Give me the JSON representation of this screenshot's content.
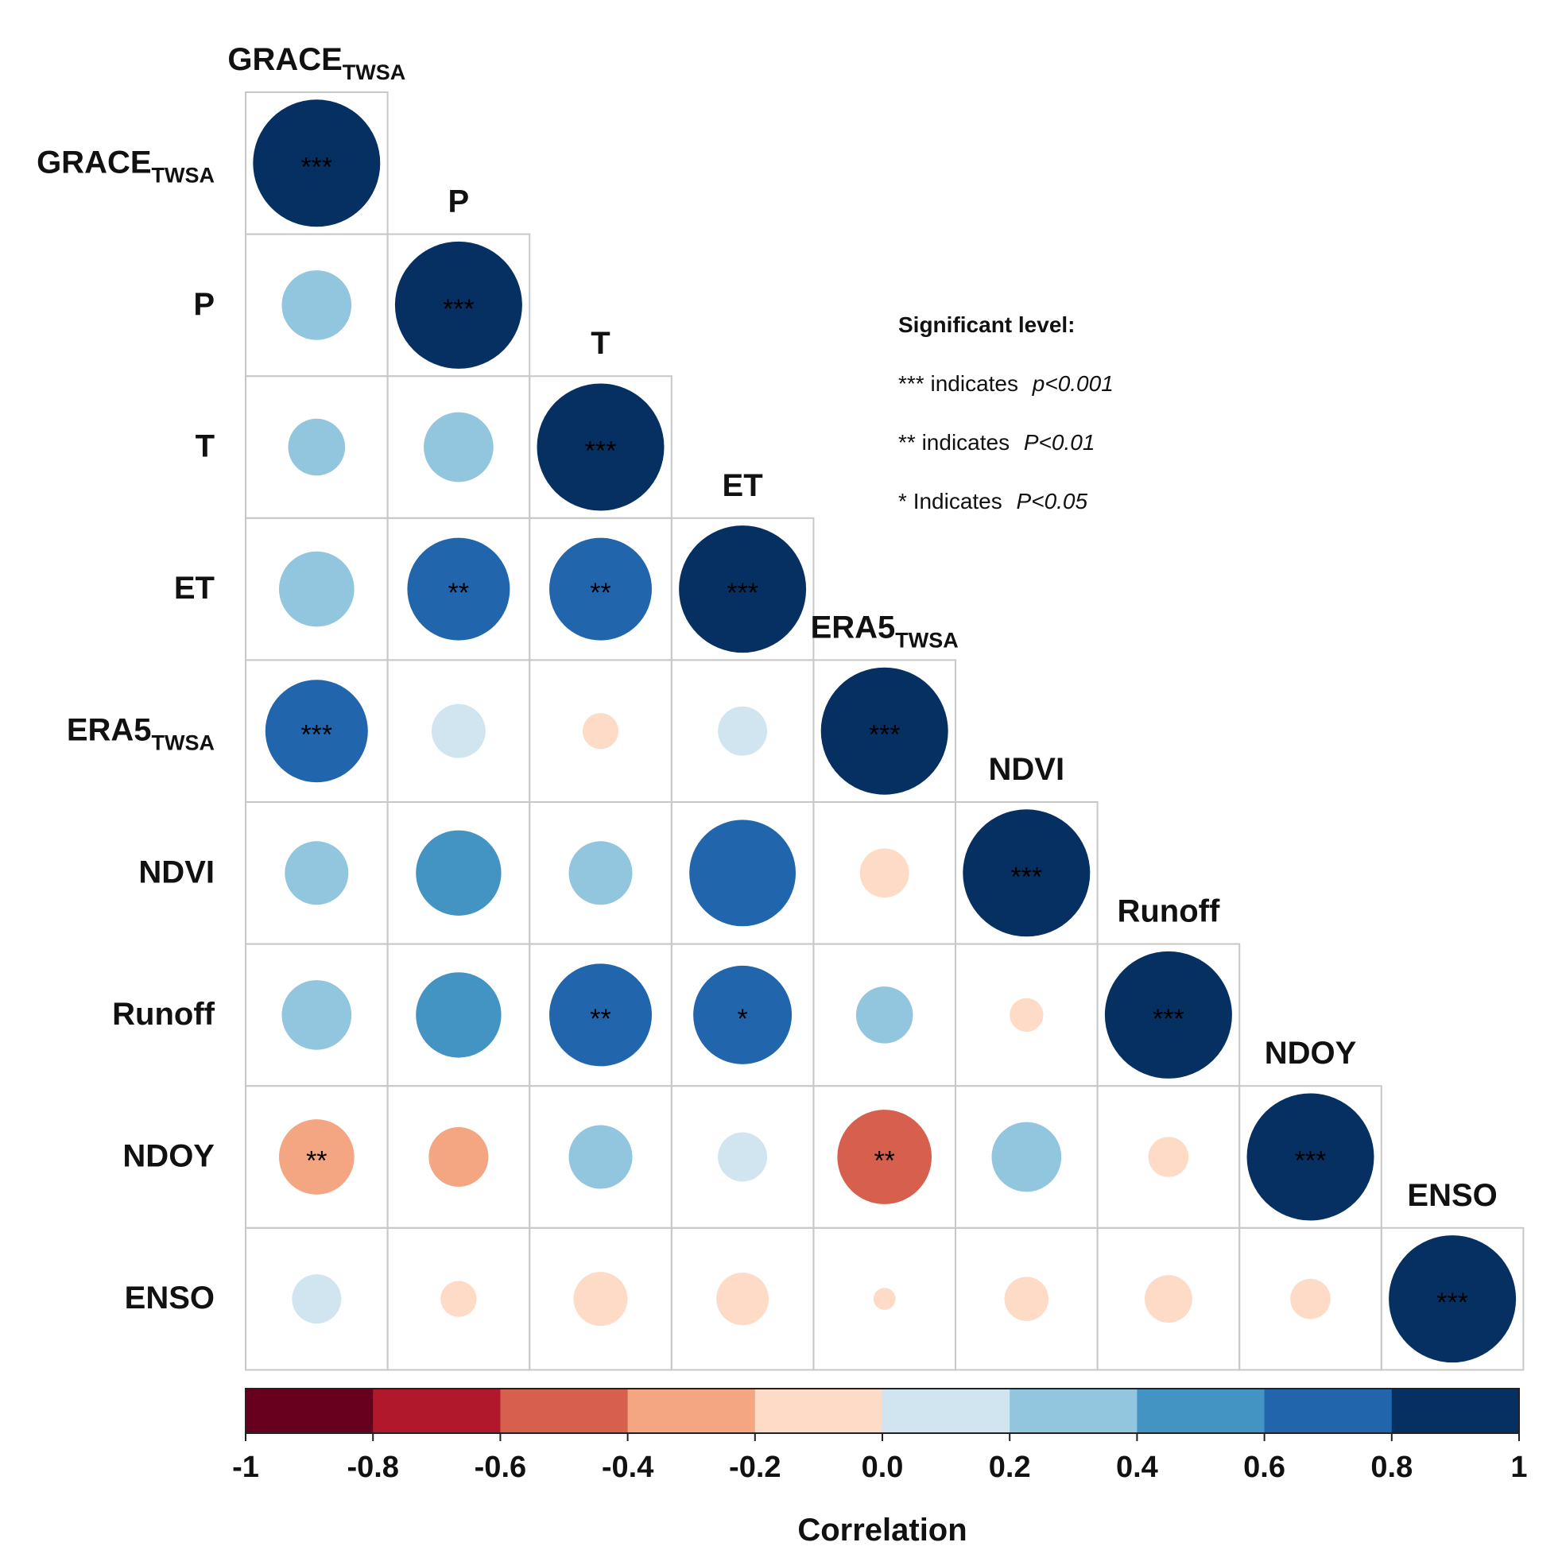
{
  "chart_data": {
    "type": "heatmap",
    "subtype": "correlation-matrix-lower-triangle",
    "variables": [
      {
        "main": "GRACE",
        "sub": "TWSA"
      },
      {
        "main": "P",
        "sub": ""
      },
      {
        "main": "T",
        "sub": ""
      },
      {
        "main": "ET",
        "sub": ""
      },
      {
        "main": "ERA5",
        "sub": "TWSA"
      },
      {
        "main": "NDVI",
        "sub": ""
      },
      {
        "main": "Runoff",
        "sub": ""
      },
      {
        "main": "NDOY",
        "sub": ""
      },
      {
        "main": "ENSO",
        "sub": ""
      }
    ],
    "correlations": [
      [
        1.0
      ],
      [
        0.3,
        1.0
      ],
      [
        0.2,
        0.3,
        1.0
      ],
      [
        0.35,
        0.65,
        0.65,
        1.0
      ],
      [
        0.65,
        0.18,
        -0.08,
        0.15,
        1.0
      ],
      [
        0.25,
        0.45,
        0.25,
        0.7,
        -0.15,
        1.0
      ],
      [
        0.3,
        0.45,
        0.65,
        0.6,
        0.2,
        -0.07,
        1.0
      ],
      [
        -0.35,
        -0.22,
        0.25,
        0.15,
        -0.55,
        0.3,
        -0.1,
        1.0
      ],
      [
        0.15,
        -0.08,
        -0.18,
        -0.17,
        -0.03,
        -0.12,
        -0.14,
        -0.1,
        1.0
      ]
    ],
    "significance": [
      [
        "***"
      ],
      [
        "",
        "***"
      ],
      [
        "",
        "",
        "***"
      ],
      [
        "",
        "**",
        "**",
        "***"
      ],
      [
        "***",
        "",
        "",
        "",
        "***"
      ],
      [
        "",
        "",
        "",
        "",
        "",
        "***"
      ],
      [
        "",
        "",
        "**",
        "*",
        "",
        "",
        "***"
      ],
      [
        "**",
        "",
        "",
        "",
        "**",
        "",
        "",
        "***"
      ],
      [
        "",
        "",
        "",
        "",
        "",
        "",
        "",
        "",
        "***"
      ]
    ],
    "colorbar": {
      "range": [
        -1,
        1
      ],
      "ticks": [
        "-1",
        "-0.8",
        "-0.6",
        "-0.4",
        "-0.2",
        "0.0",
        "0.2",
        "0.4",
        "0.6",
        "0.8",
        "1"
      ],
      "colors": [
        "#67001f",
        "#b2182b",
        "#d6604d",
        "#f4a582",
        "#fddbc7",
        "#d1e5f0",
        "#92c5de",
        "#4393c3",
        "#2166ac",
        "#053061"
      ],
      "label": "Correlation"
    }
  },
  "legend": {
    "title": "Significant level:",
    "rows": [
      {
        "stars": "***",
        "text": "indicates",
        "p": "p<0.001"
      },
      {
        "stars": "**",
        "text": "indicates",
        "p": "P<0.01"
      },
      {
        "stars": "*",
        "text": "Indicates",
        "p": "P<0.05"
      }
    ]
  }
}
